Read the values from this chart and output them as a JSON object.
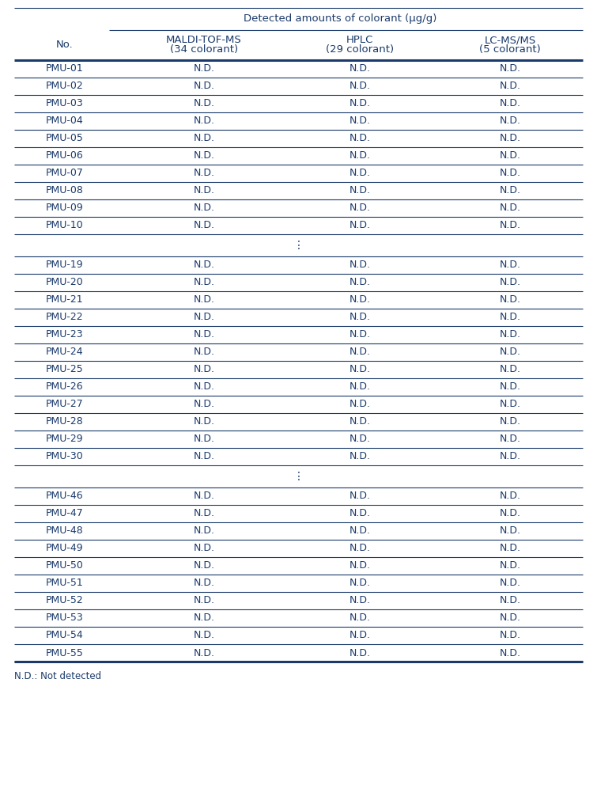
{
  "title_main": "Detected amounts of colorant (μg/g)",
  "col_header_line1": [
    "No.",
    "MALDI-TOF-MS",
    "HPLC",
    "LC-MS/MS"
  ],
  "col_header_line2": [
    "",
    "(34 colorant)",
    "(29 colorant)",
    "(5 colorant)"
  ],
  "rows_group1": [
    [
      "PMU-01",
      "N.D.",
      "N.D.",
      "N.D."
    ],
    [
      "PMU-02",
      "N.D.",
      "N.D.",
      "N.D."
    ],
    [
      "PMU-03",
      "N.D.",
      "N.D.",
      "N.D."
    ],
    [
      "PMU-04",
      "N.D.",
      "N.D.",
      "N.D."
    ],
    [
      "PMU-05",
      "N.D.",
      "N.D.",
      "N.D."
    ],
    [
      "PMU-06",
      "N.D.",
      "N.D.",
      "N.D."
    ],
    [
      "PMU-07",
      "N.D.",
      "N.D.",
      "N.D."
    ],
    [
      "PMU-08",
      "N.D.",
      "N.D.",
      "N.D."
    ],
    [
      "PMU-09",
      "N.D.",
      "N.D.",
      "N.D."
    ],
    [
      "PMU-10",
      "N.D.",
      "N.D.",
      "N.D."
    ]
  ],
  "rows_group2": [
    [
      "PMU-19",
      "N.D.",
      "N.D.",
      "N.D."
    ],
    [
      "PMU-20",
      "N.D.",
      "N.D.",
      "N.D."
    ],
    [
      "PMU-21",
      "N.D.",
      "N.D.",
      "N.D."
    ],
    [
      "PMU-22",
      "N.D.",
      "N.D.",
      "N.D."
    ],
    [
      "PMU-23",
      "N.D.",
      "N.D.",
      "N.D."
    ],
    [
      "PMU-24",
      "N.D.",
      "N.D.",
      "N.D."
    ],
    [
      "PMU-25",
      "N.D.",
      "N.D.",
      "N.D."
    ],
    [
      "PMU-26",
      "N.D.",
      "N.D.",
      "N.D."
    ],
    [
      "PMU-27",
      "N.D.",
      "N.D.",
      "N.D."
    ],
    [
      "PMU-28",
      "N.D.",
      "N.D.",
      "N.D."
    ],
    [
      "PMU-29",
      "N.D.",
      "N.D.",
      "N.D."
    ],
    [
      "PMU-30",
      "N.D.",
      "N.D.",
      "N.D."
    ]
  ],
  "rows_group3": [
    [
      "PMU-46",
      "N.D.",
      "N.D.",
      "N.D."
    ],
    [
      "PMU-47",
      "N.D.",
      "N.D.",
      "N.D."
    ],
    [
      "PMU-48",
      "N.D.",
      "N.D.",
      "N.D."
    ],
    [
      "PMU-49",
      "N.D.",
      "N.D.",
      "N.D."
    ],
    [
      "PMU-50",
      "N.D.",
      "N.D.",
      "N.D."
    ],
    [
      "PMU-51",
      "N.D.",
      "N.D.",
      "N.D."
    ],
    [
      "PMU-52",
      "N.D.",
      "N.D.",
      "N.D."
    ],
    [
      "PMU-53",
      "N.D.",
      "N.D.",
      "N.D."
    ],
    [
      "PMU-54",
      "N.D.",
      "N.D.",
      "N.D."
    ],
    [
      "PMU-55",
      "N.D.",
      "N.D.",
      "N.D."
    ]
  ],
  "footnote": "N.D.: Not detected",
  "text_color": "#1a3a6b",
  "line_color": "#1a3a6b",
  "bg_color": "#ffffff",
  "font_size_title": 9.5,
  "font_size_header": 9.5,
  "font_size_data": 9.0,
  "font_size_footnote": 8.5
}
